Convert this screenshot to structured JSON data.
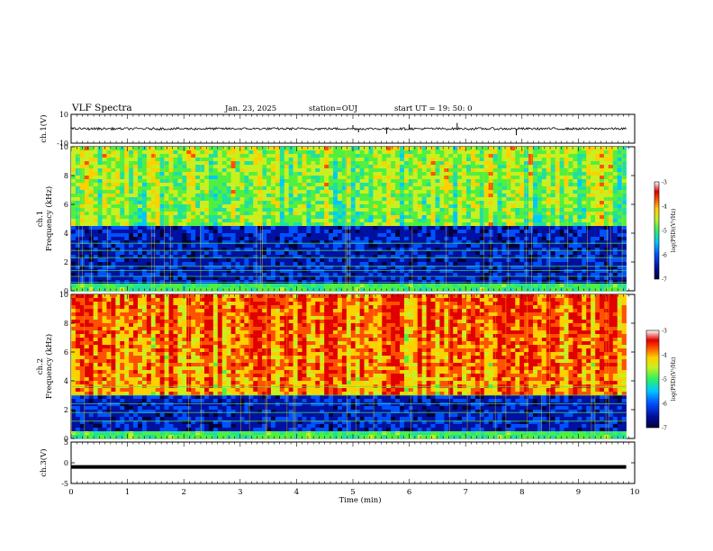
{
  "header": {
    "title": "VLF Spectra",
    "date": "Jan. 23, 2025",
    "station": "station=OUJ",
    "start": "start  UT =   19: 50: 0"
  },
  "colors": {
    "colormap": [
      "#00003a",
      "#0010a0",
      "#0050ff",
      "#00c8ff",
      "#20e0a0",
      "#50f040",
      "#c8f020",
      "#ffd000",
      "#ff5000",
      "#e00000",
      "#ffffff"
    ]
  },
  "chart_data": [
    {
      "type": "line",
      "panel": "ch1-waveform",
      "ylabel": "ch.1(V)",
      "xlim": [
        0,
        9.85
      ],
      "ylim": [
        -10,
        10
      ],
      "yticks": [
        "10",
        "-10"
      ],
      "baseline": 0,
      "spikes": [
        {
          "x": 5.0,
          "y": 2.5
        },
        {
          "x": 5.1,
          "y": -2.5
        },
        {
          "x": 5.6,
          "y": -3.5
        },
        {
          "x": 6.0,
          "y": 3.0
        },
        {
          "x": 6.85,
          "y": 4.0
        },
        {
          "x": 7.9,
          "y": -4.5
        }
      ]
    },
    {
      "type": "heatmap",
      "panel": "ch1-spectrogram",
      "ylabel_top": "ch.1",
      "ylabel": "Frequency (kHz)",
      "xlim": [
        0,
        9.85
      ],
      "ylim": [
        0,
        10
      ],
      "yticks": [
        "0",
        "2",
        "4",
        "6",
        "8",
        "10"
      ],
      "colorbar": {
        "label": "log(PSD)(V²/Hz)",
        "range": [
          -7,
          -3
        ],
        "ticks": [
          "-3",
          "-4",
          "-5",
          "-6",
          "-7"
        ]
      },
      "description_level": "mostly -6 to -4.5 log(PSD) above 4 kHz, near -7 below 4 kHz",
      "band_top_khz": 4.5,
      "harmonic_lines_khz": [
        0.4,
        0.6,
        1.0,
        1.4,
        1.7,
        2.3,
        2.8,
        3.3
      ]
    },
    {
      "type": "heatmap",
      "panel": "ch2-spectrogram",
      "ylabel_top": "ch.2",
      "ylabel": "Frequency (kHz)",
      "xlim": [
        0,
        9.85
      ],
      "ylim": [
        0,
        10
      ],
      "yticks": [
        "0",
        "2",
        "4",
        "6",
        "8",
        "10"
      ],
      "colorbar": {
        "label": "log(PSD)(V²/Hz)",
        "range": [
          -7,
          -3
        ],
        "ticks": [
          "-3",
          "-4",
          "-5",
          "-6",
          "-7"
        ]
      },
      "band_top_khz": 3.0,
      "harmonic_lines_khz": [
        0.4,
        1.2,
        1.8,
        2.4,
        3.0,
        3.6
      ]
    },
    {
      "type": "line",
      "panel": "ch3-waveform",
      "ylabel": "ch.3(V)",
      "xlim": [
        0,
        9.85
      ],
      "ylim": [
        -5,
        5
      ],
      "yticks": [
        "5",
        "0",
        "-5"
      ],
      "constant_value": -1
    }
  ],
  "xaxis": {
    "label": "Time (min)",
    "ticks": [
      "0",
      "1",
      "2",
      "3",
      "4",
      "5",
      "6",
      "7",
      "8",
      "9",
      "10"
    ],
    "range": [
      0,
      10
    ]
  }
}
